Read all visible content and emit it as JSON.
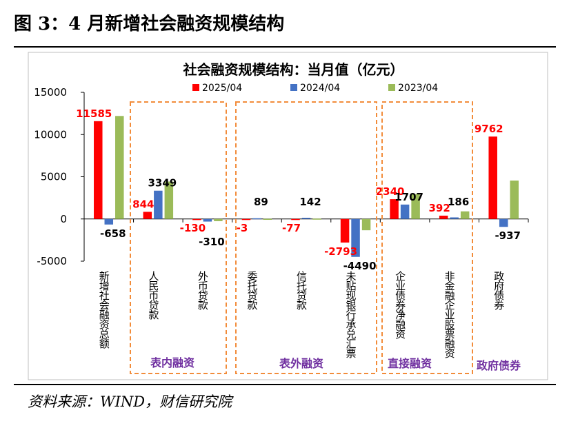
{
  "figure": {
    "title": "图 3：4 月新增社会融资规模结构",
    "source": "资料来源：WIND，财信研究院"
  },
  "colors": {
    "series_2025": "#ff0000",
    "series_2024": "#4472c4",
    "series_2023": "#9bbb59",
    "group_box": "#f28c3a",
    "group_label": "#7030a0"
  },
  "chart_data": {
    "type": "bar",
    "title": "社会融资规模结构：当月值（亿元）",
    "categories": [
      "新增社会融资总额",
      "人民币贷款",
      "外币贷款",
      "委托贷款",
      "信托贷款",
      "未贴现银行承兑汇票",
      "企业债券净融资",
      "非金融企业股票融资",
      "政府债券"
    ],
    "series": [
      {
        "name": "2025/04",
        "values": [
          11585,
          844,
          -130,
          -3,
          -77,
          -2793,
          2340,
          392,
          9762
        ]
      },
      {
        "name": "2024/04",
        "values": [
          -658,
          3349,
          -310,
          89,
          142,
          -4490,
          1707,
          186,
          -937
        ]
      },
      {
        "name": "2023/04",
        "values": [
          12200,
          4430,
          -260,
          20,
          40,
          -1340,
          2950,
          900,
          4550
        ]
      }
    ],
    "ylim": [
      -5000,
      15000
    ],
    "yticks": [
      -5000,
      0,
      5000,
      10000,
      15000
    ],
    "legend": "top",
    "groups": [
      {
        "label": "表内融资",
        "from": 1,
        "to": 2
      },
      {
        "label": "表外融资",
        "from": 3,
        "to": 5
      },
      {
        "label": "直接融资",
        "from": 6,
        "to": 7
      },
      {
        "label": "政府债券",
        "from": 8,
        "to": 8
      }
    ],
    "data_labels": [
      {
        "cat": 0,
        "series": 0,
        "text": "11585",
        "color": "red"
      },
      {
        "cat": 0,
        "series": 1,
        "text": "-658",
        "color": "black"
      },
      {
        "cat": 1,
        "series": 0,
        "text": "844",
        "color": "red"
      },
      {
        "cat": 1,
        "series": 1,
        "text": "3349",
        "color": "black"
      },
      {
        "cat": 2,
        "series": 0,
        "text": "-130",
        "color": "red"
      },
      {
        "cat": 2,
        "series": 1,
        "text": "-310",
        "color": "black"
      },
      {
        "cat": 3,
        "series": 0,
        "text": "-3",
        "color": "red"
      },
      {
        "cat": 3,
        "series": 1,
        "text": "89",
        "color": "black"
      },
      {
        "cat": 4,
        "series": 0,
        "text": "-77",
        "color": "red"
      },
      {
        "cat": 4,
        "series": 1,
        "text": "142",
        "color": "black"
      },
      {
        "cat": 5,
        "series": 0,
        "text": "-2793",
        "color": "red"
      },
      {
        "cat": 5,
        "series": 1,
        "text": "-4490",
        "color": "black"
      },
      {
        "cat": 6,
        "series": 0,
        "text": "2340",
        "color": "red"
      },
      {
        "cat": 6,
        "series": 1,
        "text": "1707",
        "color": "black"
      },
      {
        "cat": 7,
        "series": 0,
        "text": "392",
        "color": "red"
      },
      {
        "cat": 7,
        "series": 1,
        "text": "186",
        "color": "black"
      },
      {
        "cat": 8,
        "series": 0,
        "text": "9762",
        "color": "red"
      },
      {
        "cat": 8,
        "series": 1,
        "text": "-937",
        "color": "black"
      }
    ]
  }
}
